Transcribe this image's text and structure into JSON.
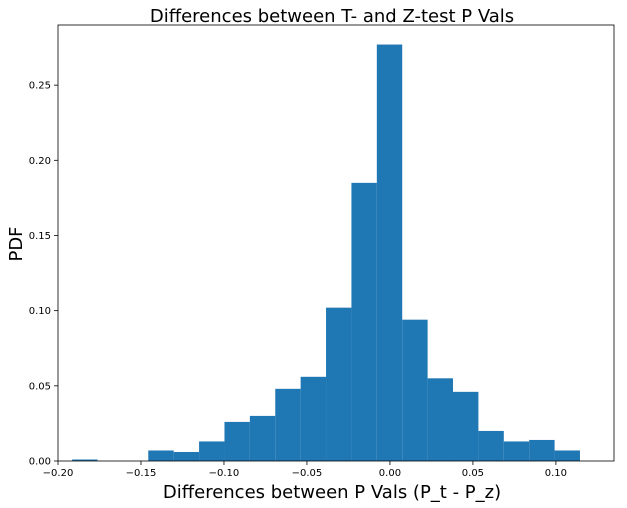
{
  "chart_data": {
    "type": "histogram",
    "title": "Differences between T- and Z-test P Vals",
    "xlabel": "Differences between P Vals (P_t - P_z)",
    "ylabel": "PDF",
    "xlim": [
      -0.2,
      0.135
    ],
    "ylim": [
      0,
      0.29
    ],
    "bar_color": "#1f77b4",
    "bins": [
      {
        "start": -0.1915,
        "end": -0.1762,
        "value": 0.001
      },
      {
        "start": -0.1762,
        "end": -0.1609,
        "value": 0.0
      },
      {
        "start": -0.1609,
        "end": -0.1456,
        "value": 0.0
      },
      {
        "start": -0.1456,
        "end": -0.1303,
        "value": 0.007
      },
      {
        "start": -0.1303,
        "end": -0.115,
        "value": 0.006
      },
      {
        "start": -0.115,
        "end": -0.0997,
        "value": 0.013
      },
      {
        "start": -0.0997,
        "end": -0.0844,
        "value": 0.026
      },
      {
        "start": -0.0844,
        "end": -0.0691,
        "value": 0.03
      },
      {
        "start": -0.0691,
        "end": -0.0538,
        "value": 0.048
      },
      {
        "start": -0.0538,
        "end": -0.0385,
        "value": 0.056
      },
      {
        "start": -0.0385,
        "end": -0.0232,
        "value": 0.102
      },
      {
        "start": -0.0232,
        "end": -0.0079,
        "value": 0.185
      },
      {
        "start": -0.0079,
        "end": 0.0074,
        "value": 0.277
      },
      {
        "start": 0.0074,
        "end": 0.0227,
        "value": 0.094
      },
      {
        "start": 0.0227,
        "end": 0.038,
        "value": 0.055
      },
      {
        "start": 0.038,
        "end": 0.0533,
        "value": 0.046
      },
      {
        "start": 0.0533,
        "end": 0.0686,
        "value": 0.02
      },
      {
        "start": 0.0686,
        "end": 0.0839,
        "value": 0.013
      },
      {
        "start": 0.0839,
        "end": 0.0992,
        "value": 0.014
      },
      {
        "start": 0.0992,
        "end": 0.1145,
        "value": 0.007
      }
    ],
    "x_ticks": [
      {
        "value": -0.2,
        "label": "−0.20"
      },
      {
        "value": -0.15,
        "label": "−0.15"
      },
      {
        "value": -0.1,
        "label": "−0.10"
      },
      {
        "value": -0.05,
        "label": "−0.05"
      },
      {
        "value": 0.0,
        "label": "0.00"
      },
      {
        "value": 0.05,
        "label": "0.05"
      },
      {
        "value": 0.1,
        "label": "0.10"
      }
    ],
    "y_ticks": [
      {
        "value": 0.0,
        "label": "0.00"
      },
      {
        "value": 0.05,
        "label": "0.05"
      },
      {
        "value": 0.1,
        "label": "0.10"
      },
      {
        "value": 0.15,
        "label": "0.15"
      },
      {
        "value": 0.2,
        "label": "0.20"
      },
      {
        "value": 0.25,
        "label": "0.25"
      }
    ]
  }
}
